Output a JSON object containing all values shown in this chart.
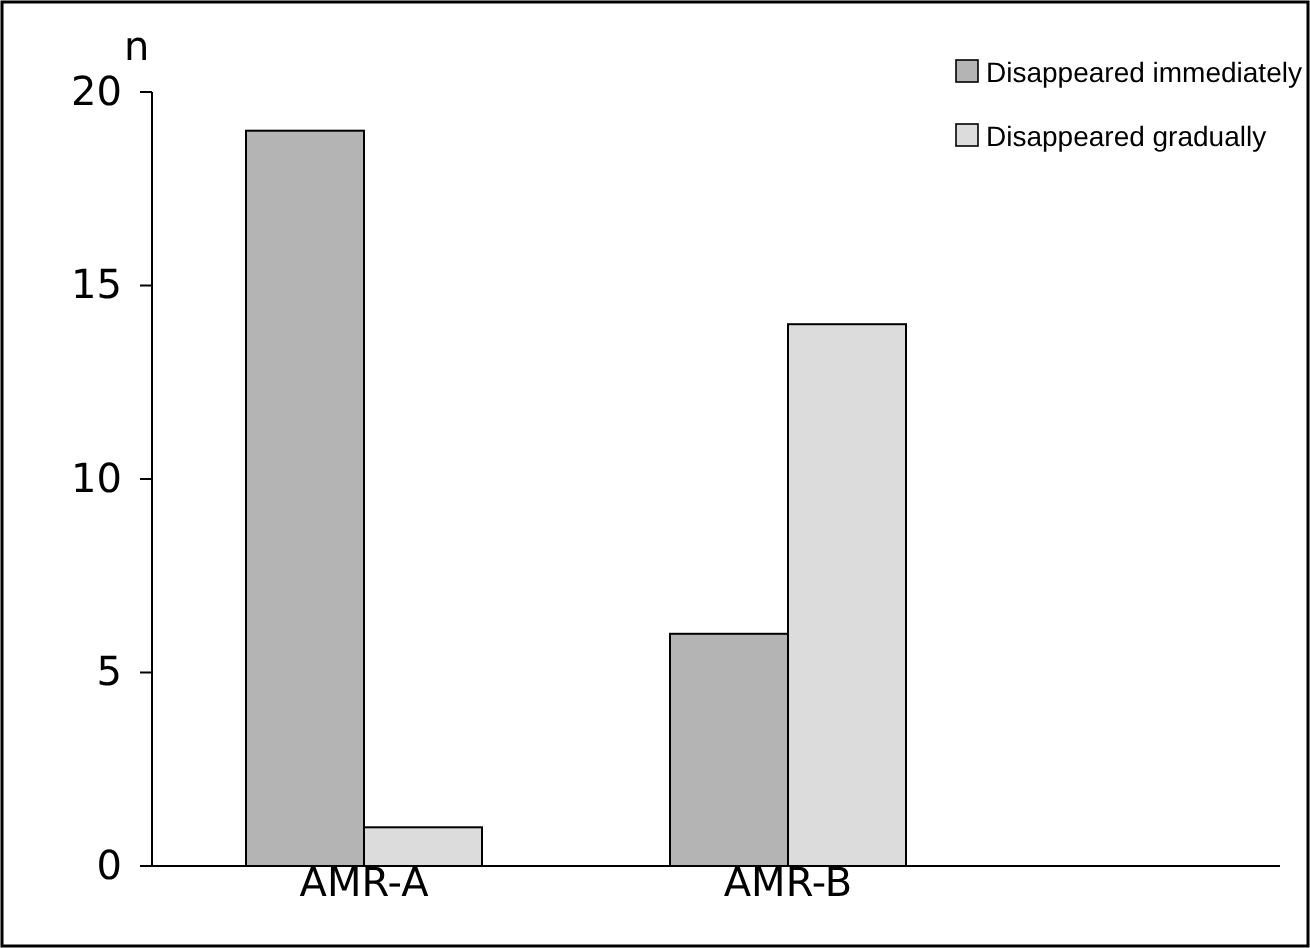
{
  "chart_data": {
    "type": "bar",
    "ylabel": "n",
    "categories": [
      "AMR-A",
      "AMR-B"
    ],
    "series": [
      {
        "name": "Disappeared immediately",
        "color": "#b4b4b4",
        "values": [
          19,
          6
        ]
      },
      {
        "name": "Disappeared gradually",
        "color": "#dcdcdc",
        "values": [
          1,
          14
        ]
      }
    ],
    "ylim": [
      0,
      20
    ],
    "yticks": [
      0,
      5,
      10,
      15,
      20
    ],
    "grid": false,
    "legend": "top right"
  }
}
